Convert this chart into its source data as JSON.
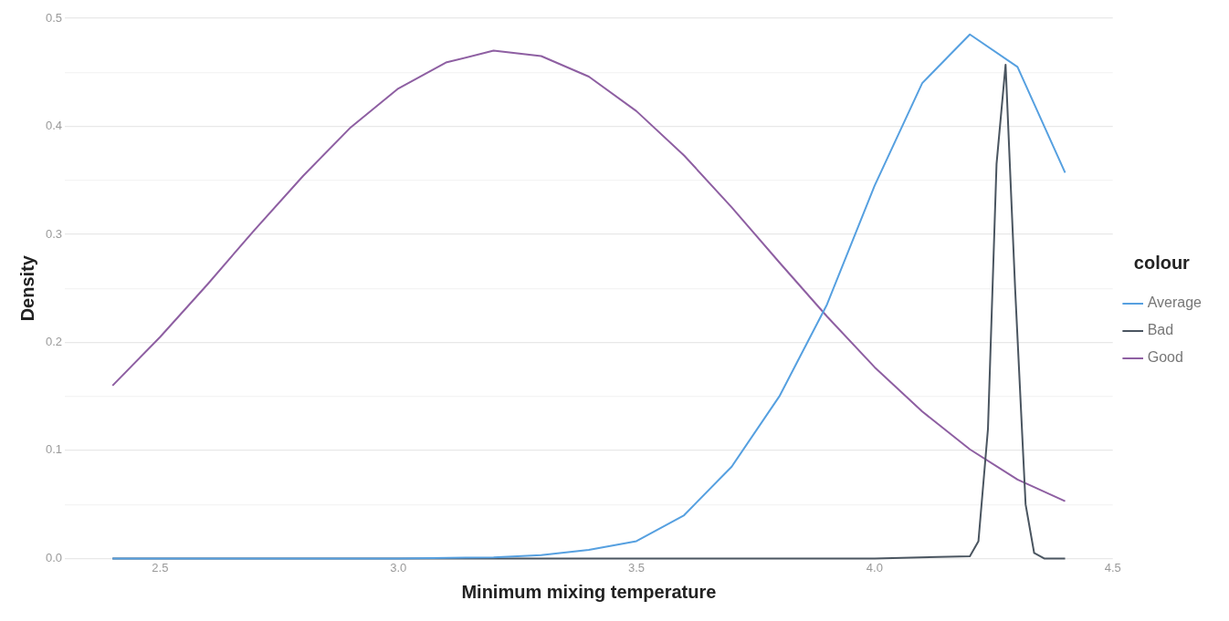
{
  "chart_data": {
    "type": "line",
    "xlabel": "Minimum mixing temperature",
    "ylabel": "Density",
    "legend_title": "colour",
    "xlim": [
      2.3,
      4.5
    ],
    "ylim": [
      0,
      0.5
    ],
    "xticks": [
      2.5,
      {
        "value": 3.0,
        "label": "3.0"
      },
      3.5,
      {
        "value": 4.0,
        "label": "4.0"
      },
      4.5
    ],
    "yticks": [
      {
        "value": 0,
        "label": "0.0"
      },
      {
        "value": 0.05,
        "label": null
      },
      0.1,
      {
        "value": 0.15,
        "label": null
      },
      0.2,
      {
        "value": 0.25,
        "label": null
      },
      0.3,
      {
        "value": 0.35,
        "label": null
      },
      0.4,
      {
        "value": 0.45,
        "label": null
      },
      0.5
    ],
    "grid": "y",
    "legend": "right",
    "series": [
      {
        "name": "Average",
        "color": "#56a0e0",
        "x": [
          2.4,
          2.6,
          2.8,
          3.0,
          3.2,
          3.3,
          3.4,
          3.5,
          3.6,
          3.7,
          3.8,
          3.9,
          4.0,
          4.1,
          4.2,
          4.3,
          4.4
        ],
        "values": [
          0,
          0,
          0,
          0,
          0.001,
          0.003,
          0.008,
          0.016,
          0.04,
          0.085,
          0.15,
          0.235,
          0.345,
          0.44,
          0.485,
          0.455,
          0.357
        ]
      },
      {
        "name": "Bad",
        "color": "#4a5560",
        "x": [
          2.4,
          3.0,
          3.5,
          4.0,
          4.2,
          4.218,
          4.238,
          4.256,
          4.275,
          4.295,
          4.317,
          4.335,
          4.356,
          4.4
        ],
        "values": [
          0,
          0,
          0,
          0,
          0.002,
          0.016,
          0.12,
          0.365,
          0.457,
          0.25,
          0.05,
          0.005,
          0,
          0
        ]
      },
      {
        "name": "Good",
        "color": "#8e5fa2",
        "x": [
          2.4,
          2.5,
          2.6,
          2.7,
          2.8,
          2.9,
          3.0,
          3.1,
          3.2,
          3.3,
          3.4,
          3.5,
          3.6,
          3.7,
          3.8,
          3.9,
          4.0,
          4.1,
          4.2,
          4.3,
          4.4
        ],
        "values": [
          0.16,
          0.205,
          0.254,
          0.305,
          0.354,
          0.399,
          0.435,
          0.459,
          0.47,
          0.465,
          0.446,
          0.414,
          0.373,
          0.325,
          0.274,
          0.224,
          0.177,
          0.136,
          0.101,
          0.073,
          0.053
        ]
      }
    ]
  }
}
